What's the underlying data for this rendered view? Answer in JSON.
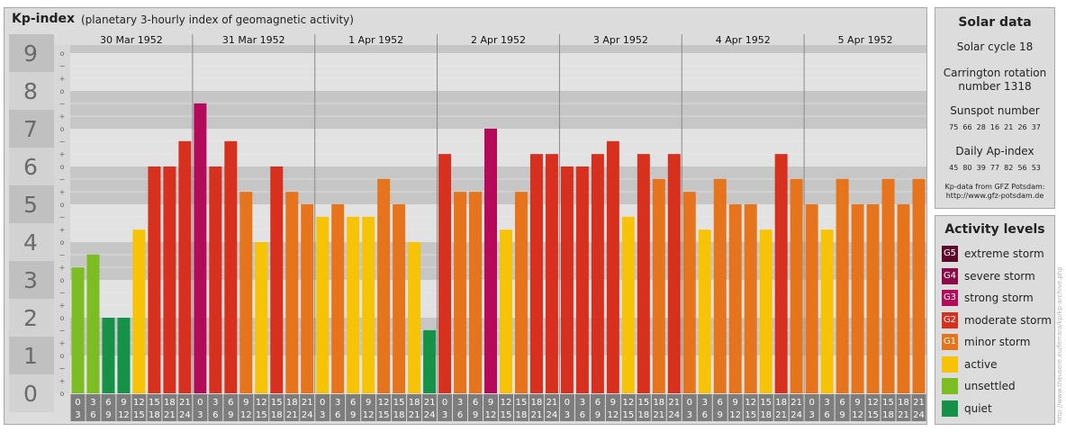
{
  "header": {
    "title": "Kp-index",
    "subtitle": "(planetary 3-hourly index of geomagnetic activity)"
  },
  "chart_data": {
    "type": "bar",
    "ylim": [
      0,
      9
    ],
    "y_ticks": [
      "0",
      "1",
      "2",
      "3",
      "4",
      "5",
      "6",
      "7",
      "8",
      "9"
    ],
    "minor_ticks": [
      "o",
      "+",
      "−"
    ],
    "days": [
      "30 Mar 1952",
      "31 Mar 1952",
      "1 Apr 1952",
      "2 Apr 1952",
      "3 Apr 1952",
      "4 Apr 1952",
      "5 Apr 1952"
    ],
    "interval_labels": [
      [
        "0",
        "3"
      ],
      [
        "3",
        "6"
      ],
      [
        "6",
        "9"
      ],
      [
        "9",
        "12"
      ],
      [
        "12",
        "15"
      ],
      [
        "15",
        "18"
      ],
      [
        "18",
        "21"
      ],
      [
        "21",
        "24"
      ]
    ],
    "values": [
      3.33,
      3.67,
      2.0,
      2.0,
      4.33,
      6.0,
      6.0,
      6.67,
      7.67,
      6.0,
      6.67,
      5.33,
      4.0,
      6.0,
      5.33,
      5.0,
      4.67,
      5.0,
      4.67,
      4.67,
      5.67,
      5.0,
      4.0,
      1.67,
      6.33,
      5.33,
      5.33,
      7.0,
      4.33,
      5.33,
      6.33,
      6.33,
      6.0,
      6.0,
      6.33,
      6.67,
      4.67,
      6.33,
      5.67,
      6.33,
      5.33,
      4.33,
      5.67,
      5.0,
      5.0,
      4.33,
      6.33,
      5.67,
      5.0,
      4.33,
      5.67,
      5.0,
      5.0,
      5.67,
      5.0,
      5.67
    ],
    "grid": true
  },
  "solar": {
    "title": "Solar data",
    "cycle": "Solar cycle 18",
    "carrington_line1": "Carrington rotation",
    "carrington_line2": "number 1318",
    "sunspot_title": "Sunspot number",
    "sunspot_values": "75  66  28  16  21  26  37",
    "ap_title": "Daily Ap-index",
    "ap_values": "45  80  39  77  82  56  53",
    "source_line1": "Kp-data from GFZ Potsdam:",
    "source_line2": "http://www.gfz-potsdam.de"
  },
  "levels": {
    "title": "Activity levels",
    "items": [
      {
        "code": "G5",
        "label": "extreme storm",
        "color": "#5c0a2a"
      },
      {
        "code": "G4",
        "label": "severe storm",
        "color": "#8a0b48"
      },
      {
        "code": "G3",
        "label": "strong storm",
        "color": "#b40a5a"
      },
      {
        "code": "G2",
        "label": "moderate storm",
        "color": "#d8301f"
      },
      {
        "code": "G1",
        "label": "minor storm",
        "color": "#e5741c"
      },
      {
        "code": "",
        "label": "active",
        "color": "#f7c306"
      },
      {
        "code": "",
        "label": "unsettled",
        "color": "#7cbd24"
      },
      {
        "code": "",
        "label": "quiet",
        "color": "#159148"
      }
    ]
  },
  "watermark": "http://www.theusere.eu/ferrara/kp/kp-archive.php"
}
